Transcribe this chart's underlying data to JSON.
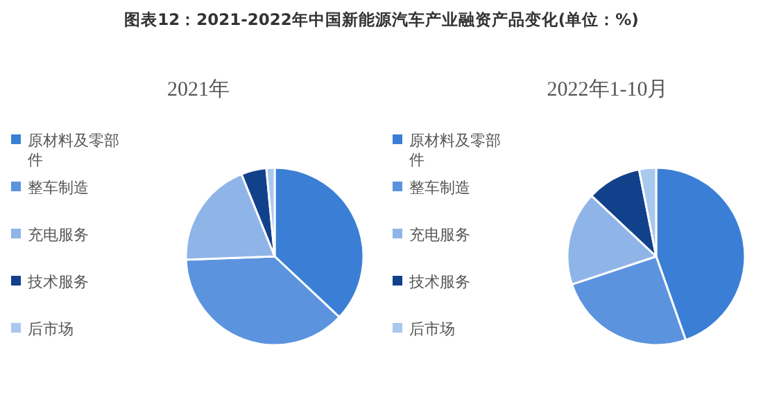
{
  "chart_data": [
    {
      "type": "pie",
      "title": "图表12：2021-2022年中国新能源汽车产业融资产品变化(单位：%)",
      "subtitle": "2021年",
      "categories": [
        "原材料及零部件",
        "整车制造",
        "充电服务",
        "技术服务",
        "后市场"
      ],
      "values": [
        37,
        37.4,
        19.5,
        4.6,
        1.5
      ],
      "colors": [
        "#3a7fd5",
        "#5b93de",
        "#8fb4e8",
        "#12418c",
        "#a8c8ee"
      ],
      "legend": "left"
    },
    {
      "type": "pie",
      "subtitle": "2022年1-10月",
      "categories": [
        "原材料及零部件",
        "整车制造",
        "充电服务",
        "技术服务",
        "后市场"
      ],
      "values": [
        44.6,
        25.3,
        17.1,
        9.9,
        3.1
      ],
      "colors": [
        "#3a7fd5",
        "#5b93de",
        "#8fb4e8",
        "#12418c",
        "#a8c8ee"
      ],
      "legend": "left"
    }
  ]
}
